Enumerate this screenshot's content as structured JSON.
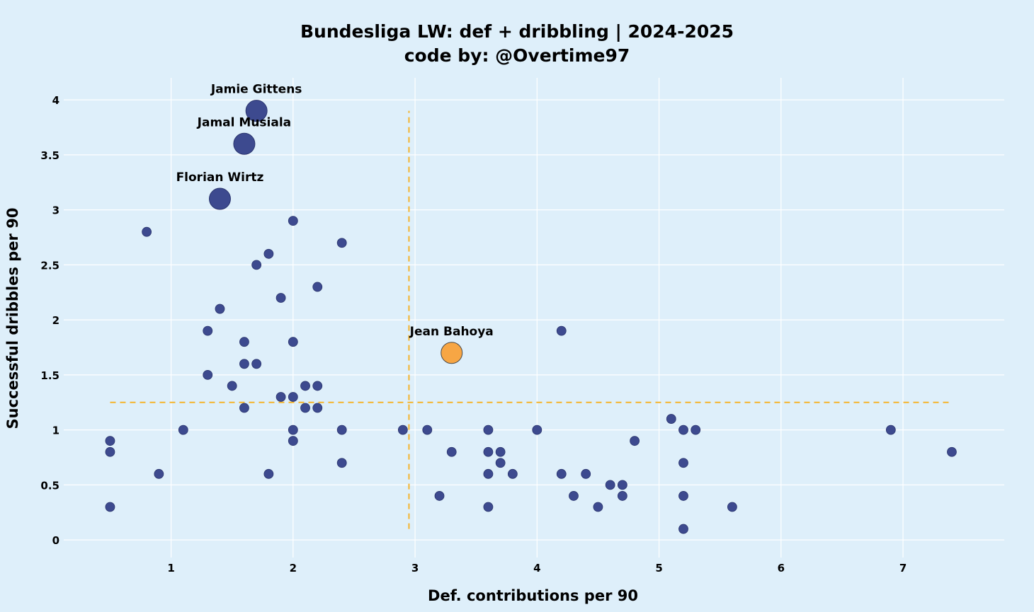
{
  "chart_data": {
    "type": "scatter",
    "title": "Bundesliga LW: def + dribbling | 2024-2025",
    "subtitle": "code by: @Overtime97",
    "xlabel": "Def. contributions per 90",
    "ylabel": "Successful dribbles per 90",
    "xlim": [
      0.12,
      7.83
    ],
    "ylim": [
      -0.16,
      4.2
    ],
    "xticks": [
      1,
      2,
      3,
      4,
      5,
      6,
      7
    ],
    "yticks": [
      0,
      0.5,
      1,
      1.5,
      2,
      2.5,
      3,
      3.5,
      4
    ],
    "grid": true,
    "colors": {
      "background": "#deeffa",
      "point": "#3d4a8f",
      "highlight": "#f7a644",
      "reference_line": "#f5b42a",
      "grid": "#ffffff"
    },
    "reference_lines": {
      "vertical": {
        "x": 2.95,
        "y_from": 0.1,
        "y_to": 3.9
      },
      "horizontal": {
        "y": 1.25,
        "x_from": 0.5,
        "x_to": 7.4
      }
    },
    "labeled_points": [
      {
        "label": "Jamie Gittens",
        "x": 1.7,
        "y": 3.9,
        "highlight": false
      },
      {
        "label": "Jamal Musiala",
        "x": 1.6,
        "y": 3.6,
        "highlight": false
      },
      {
        "label": "Florian Wirtz",
        "x": 1.4,
        "y": 3.1,
        "highlight": false
      },
      {
        "label": "Jean Bahoya",
        "x": 3.3,
        "y": 1.7,
        "highlight": true
      }
    ],
    "points": [
      {
        "x": 0.8,
        "y": 2.8
      },
      {
        "x": 2.0,
        "y": 2.9
      },
      {
        "x": 2.4,
        "y": 2.7
      },
      {
        "x": 1.8,
        "y": 2.6
      },
      {
        "x": 1.7,
        "y": 2.5
      },
      {
        "x": 2.2,
        "y": 2.3
      },
      {
        "x": 1.9,
        "y": 2.2
      },
      {
        "x": 1.4,
        "y": 2.1
      },
      {
        "x": 1.3,
        "y": 1.9
      },
      {
        "x": 4.2,
        "y": 1.9
      },
      {
        "x": 1.6,
        "y": 1.8
      },
      {
        "x": 2.0,
        "y": 1.8
      },
      {
        "x": 1.6,
        "y": 1.6
      },
      {
        "x": 1.7,
        "y": 1.6
      },
      {
        "x": 1.3,
        "y": 1.5
      },
      {
        "x": 1.5,
        "y": 1.4
      },
      {
        "x": 2.1,
        "y": 1.4
      },
      {
        "x": 2.2,
        "y": 1.4
      },
      {
        "x": 1.9,
        "y": 1.3
      },
      {
        "x": 2.0,
        "y": 1.3
      },
      {
        "x": 1.6,
        "y": 1.2
      },
      {
        "x": 2.1,
        "y": 1.2
      },
      {
        "x": 2.2,
        "y": 1.2
      },
      {
        "x": 5.1,
        "y": 1.1
      },
      {
        "x": 1.1,
        "y": 1.0
      },
      {
        "x": 2.0,
        "y": 1.0
      },
      {
        "x": 2.4,
        "y": 1.0
      },
      {
        "x": 2.9,
        "y": 1.0
      },
      {
        "x": 3.1,
        "y": 1.0
      },
      {
        "x": 3.6,
        "y": 1.0
      },
      {
        "x": 4.0,
        "y": 1.0
      },
      {
        "x": 5.2,
        "y": 1.0
      },
      {
        "x": 5.3,
        "y": 1.0
      },
      {
        "x": 6.9,
        "y": 1.0
      },
      {
        "x": 0.5,
        "y": 0.9
      },
      {
        "x": 2.0,
        "y": 0.9
      },
      {
        "x": 4.8,
        "y": 0.9
      },
      {
        "x": 0.5,
        "y": 0.8
      },
      {
        "x": 3.3,
        "y": 0.8
      },
      {
        "x": 3.6,
        "y": 0.8
      },
      {
        "x": 3.7,
        "y": 0.8
      },
      {
        "x": 7.4,
        "y": 0.8
      },
      {
        "x": 2.4,
        "y": 0.7
      },
      {
        "x": 3.7,
        "y": 0.7
      },
      {
        "x": 5.2,
        "y": 0.7
      },
      {
        "x": 0.9,
        "y": 0.6
      },
      {
        "x": 1.8,
        "y": 0.6
      },
      {
        "x": 3.6,
        "y": 0.6
      },
      {
        "x": 3.8,
        "y": 0.6
      },
      {
        "x": 4.2,
        "y": 0.6
      },
      {
        "x": 4.4,
        "y": 0.6
      },
      {
        "x": 4.6,
        "y": 0.5
      },
      {
        "x": 4.7,
        "y": 0.5
      },
      {
        "x": 3.2,
        "y": 0.4
      },
      {
        "x": 4.3,
        "y": 0.4
      },
      {
        "x": 4.7,
        "y": 0.4
      },
      {
        "x": 5.2,
        "y": 0.4
      },
      {
        "x": 0.5,
        "y": 0.3
      },
      {
        "x": 3.6,
        "y": 0.3
      },
      {
        "x": 4.5,
        "y": 0.3
      },
      {
        "x": 5.6,
        "y": 0.3
      },
      {
        "x": 5.2,
        "y": 0.1
      }
    ]
  }
}
